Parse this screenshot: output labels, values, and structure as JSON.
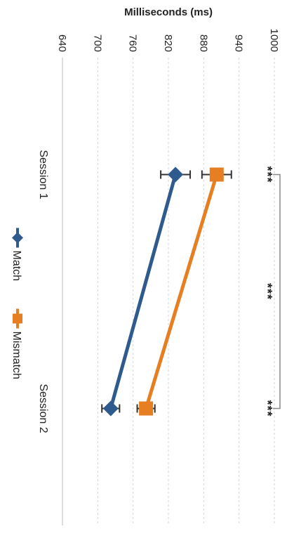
{
  "chart_data": {
    "type": "line",
    "title": "",
    "ylabel": "Milliseconds (ms)",
    "xlabel": "",
    "ylim": [
      640,
      1000
    ],
    "yticks": [
      640,
      700,
      760,
      820,
      880,
      940,
      1000
    ],
    "categories": [
      "Session 1",
      "Session 2"
    ],
    "grid": true,
    "legend_position": "bottom",
    "series": [
      {
        "name": "Match",
        "values": [
          832,
          722
        ],
        "errors": [
          25,
          15
        ],
        "color": "#2e5a8e",
        "marker": "diamond"
      },
      {
        "name": "Mismatch",
        "values": [
          902,
          782
        ],
        "errors": [
          25,
          15
        ],
        "color": "#e67e22",
        "marker": "square"
      }
    ],
    "annotations": {
      "session1": "***",
      "session2": "***",
      "between_sessions": "***"
    }
  }
}
